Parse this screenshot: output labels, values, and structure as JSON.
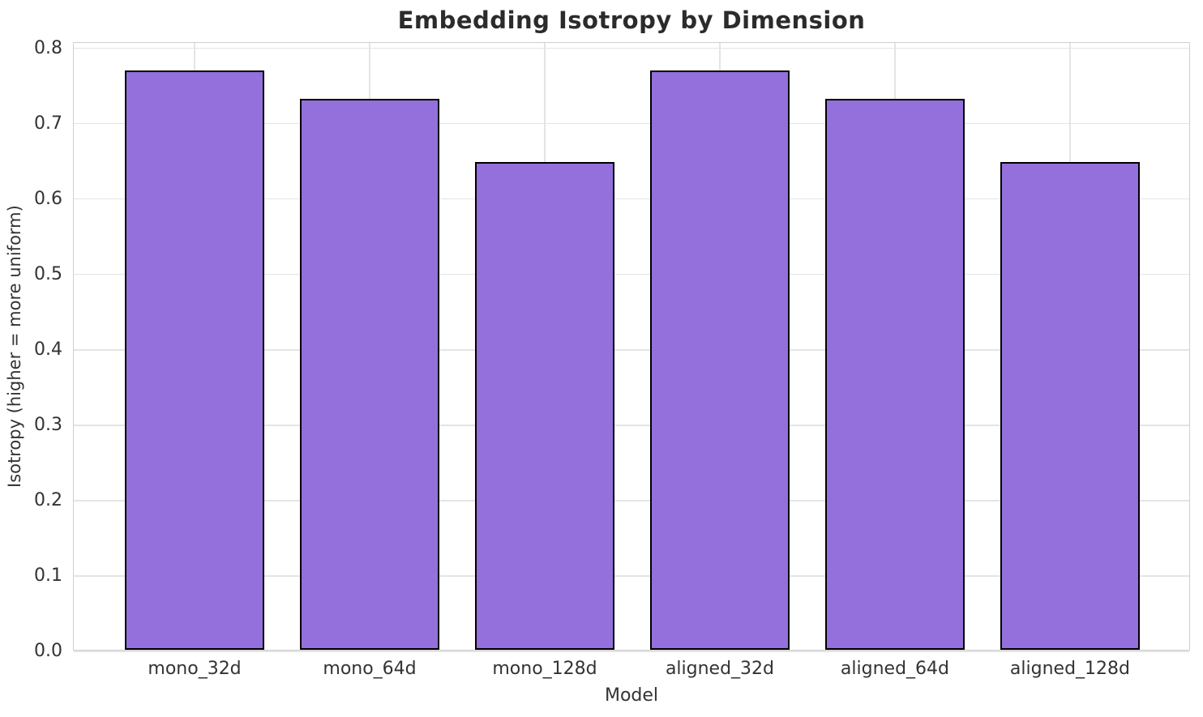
{
  "chart_data": {
    "type": "bar",
    "title": "Embedding Isotropy by Dimension",
    "xlabel": "Model",
    "ylabel": "Isotropy (higher = more uniform)",
    "categories": [
      "mono_32d",
      "mono_64d",
      "mono_128d",
      "aligned_32d",
      "aligned_64d",
      "aligned_128d"
    ],
    "values": [
      0.768,
      0.731,
      0.647,
      0.768,
      0.731,
      0.647
    ],
    "ylim": [
      0,
      0.807
    ],
    "yticks": [
      0.0,
      0.1,
      0.2,
      0.3,
      0.4,
      0.5,
      0.6,
      0.7,
      0.8
    ],
    "ytick_labels": [
      "0.0",
      "0.1",
      "0.2",
      "0.3",
      "0.4",
      "0.5",
      "0.6",
      "0.7",
      "0.8"
    ],
    "grid": true,
    "legend_position": "none",
    "bar_width_fraction": 0.8,
    "colors": {
      "bar_fill": "#9370DB",
      "bar_edge": "#000000",
      "grid": "#e4e4e4",
      "spine": "#cfcfcf",
      "title_text": "#2b2b2b",
      "tick_text": "#333333",
      "background": "#ffffff"
    }
  }
}
